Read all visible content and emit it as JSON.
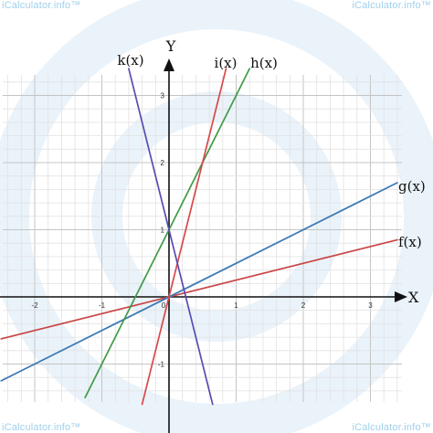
{
  "watermarks": {
    "top_left": "iCalculator.info™",
    "top_right": "iCalculator.info™",
    "bottom_left": "iCalculator.info™",
    "bottom_right": "iCalculator.info™"
  },
  "colors": {
    "grid_minor": "#e2e2e2",
    "grid_major": "#c4c4c4",
    "axis": "#111111",
    "watermark_circle": "#eaf3fa",
    "f": "#c94545",
    "g": "#3a78b5",
    "h": "#3f9a45",
    "i": "#d94848",
    "k": "#5a4cb0"
  },
  "chart_data": {
    "type": "line",
    "title": "",
    "xlabel": "X",
    "ylabel": "Y",
    "xlim": [
      -2.5,
      3.5
    ],
    "ylim": [
      -1.6,
      3.5
    ],
    "grid": true,
    "minor_step": 0.2,
    "x_ticks": [
      {
        "value": -2,
        "label": "-2"
      },
      {
        "value": -1,
        "label": "-1"
      },
      {
        "value": 1,
        "label": "1"
      },
      {
        "value": 2,
        "label": "2"
      },
      {
        "value": 3,
        "label": "3"
      }
    ],
    "y_ticks": [
      {
        "value": 3,
        "label": "3"
      },
      {
        "value": 2,
        "label": "2"
      },
      {
        "value": 1,
        "label": "1"
      },
      {
        "value": -1,
        "label": "-1"
      }
    ],
    "origin_label": "0",
    "series": [
      {
        "name": "f(x)",
        "slope": 0.25,
        "intercept": 0,
        "color": "#c94545",
        "x_range": [
          -2.5,
          3.4
        ]
      },
      {
        "name": "g(x)",
        "slope": 0.5,
        "intercept": 0,
        "color": "#3a78b5",
        "x_range": [
          -2.5,
          3.4
        ]
      },
      {
        "name": "h(x)",
        "slope": 2,
        "intercept": 1,
        "color": "#3f9a45",
        "x_range": [
          -1.25,
          1.2
        ]
      },
      {
        "name": "i(x)",
        "slope": 4,
        "intercept": 0,
        "color": "#d94848",
        "x_range": [
          -0.4,
          0.85
        ]
      },
      {
        "name": "k(x)",
        "slope": -4,
        "intercept": 1,
        "color": "#5a4cb0",
        "x_range": [
          -0.6,
          0.65
        ]
      }
    ]
  }
}
